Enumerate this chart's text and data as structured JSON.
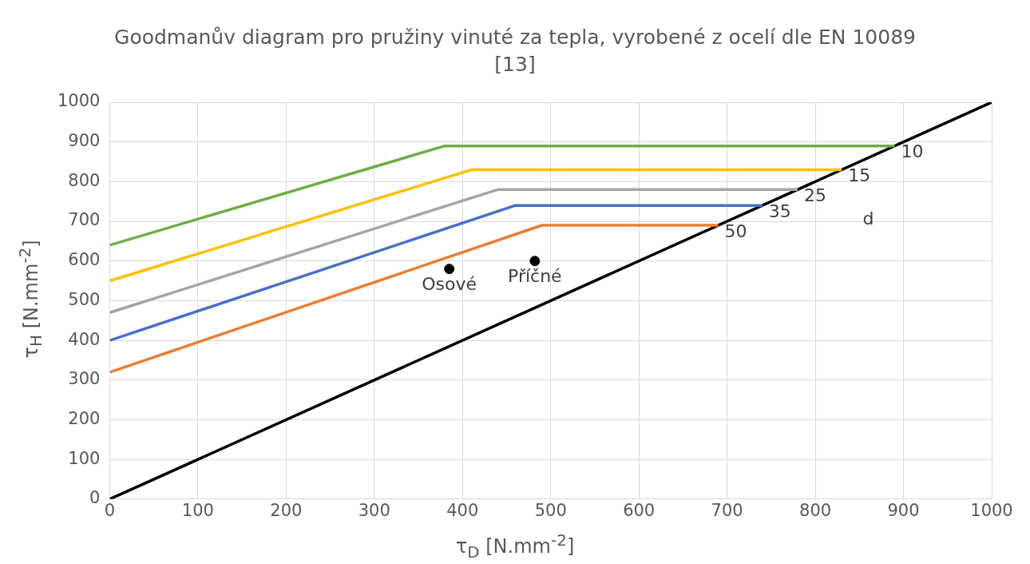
{
  "chart_data": {
    "type": "line",
    "title": "Goodmanův diagram pro pružiny vinuté za tepla, vyrobené z ocelí dle EN 10089 [13]",
    "xlabel": "τ$_{D}$ [N.mm$^{-2}$]",
    "ylabel": "τ$_{H}$ [N.mm$^{-2}$]",
    "xlim": [
      0,
      1000
    ],
    "xticks": [
      0,
      100,
      200,
      300,
      400,
      500,
      600,
      700,
      800,
      900,
      1000
    ],
    "ylim": [
      0,
      1000
    ],
    "yticks": [
      0,
      100,
      200,
      300,
      400,
      500,
      600,
      700,
      800,
      900,
      1000
    ],
    "grid": true,
    "legend": false,
    "marker": "none",
    "series": [
      {
        "name": "10",
        "color": "#70ad47",
        "x": [
          0,
          380,
          890
        ],
        "values": [
          640,
          890,
          890
        ]
      },
      {
        "name": "15",
        "color": "#ffc000",
        "x": [
          0,
          410,
          830
        ],
        "values": [
          550,
          830,
          830
        ]
      },
      {
        "name": "25",
        "color": "#a5a5a5",
        "x": [
          0,
          440,
          780
        ],
        "values": [
          470,
          780,
          780
        ]
      },
      {
        "name": "35",
        "color": "#4472c4",
        "x": [
          0,
          460,
          740
        ],
        "values": [
          400,
          740,
          740
        ]
      },
      {
        "name": "50",
        "color": "#ed7d31",
        "x": [
          0,
          490,
          690
        ],
        "values": [
          320,
          690,
          690
        ]
      },
      {
        "color": "#000000",
        "x": [
          0,
          1000
        ],
        "values": [
          0,
          1000
        ]
      },
      {
        "name": "Osové",
        "type": "scatter",
        "marker": "circle",
        "color": "#000000",
        "x": [
          385
        ],
        "values": [
          580
        ]
      },
      {
        "name": "Příčné",
        "type": "scatter",
        "marker": "circle",
        "color": "#000000",
        "x": [
          482
        ],
        "values": [
          600
        ]
      }
    ],
    "annotations": [
      "d"
    ]
  }
}
